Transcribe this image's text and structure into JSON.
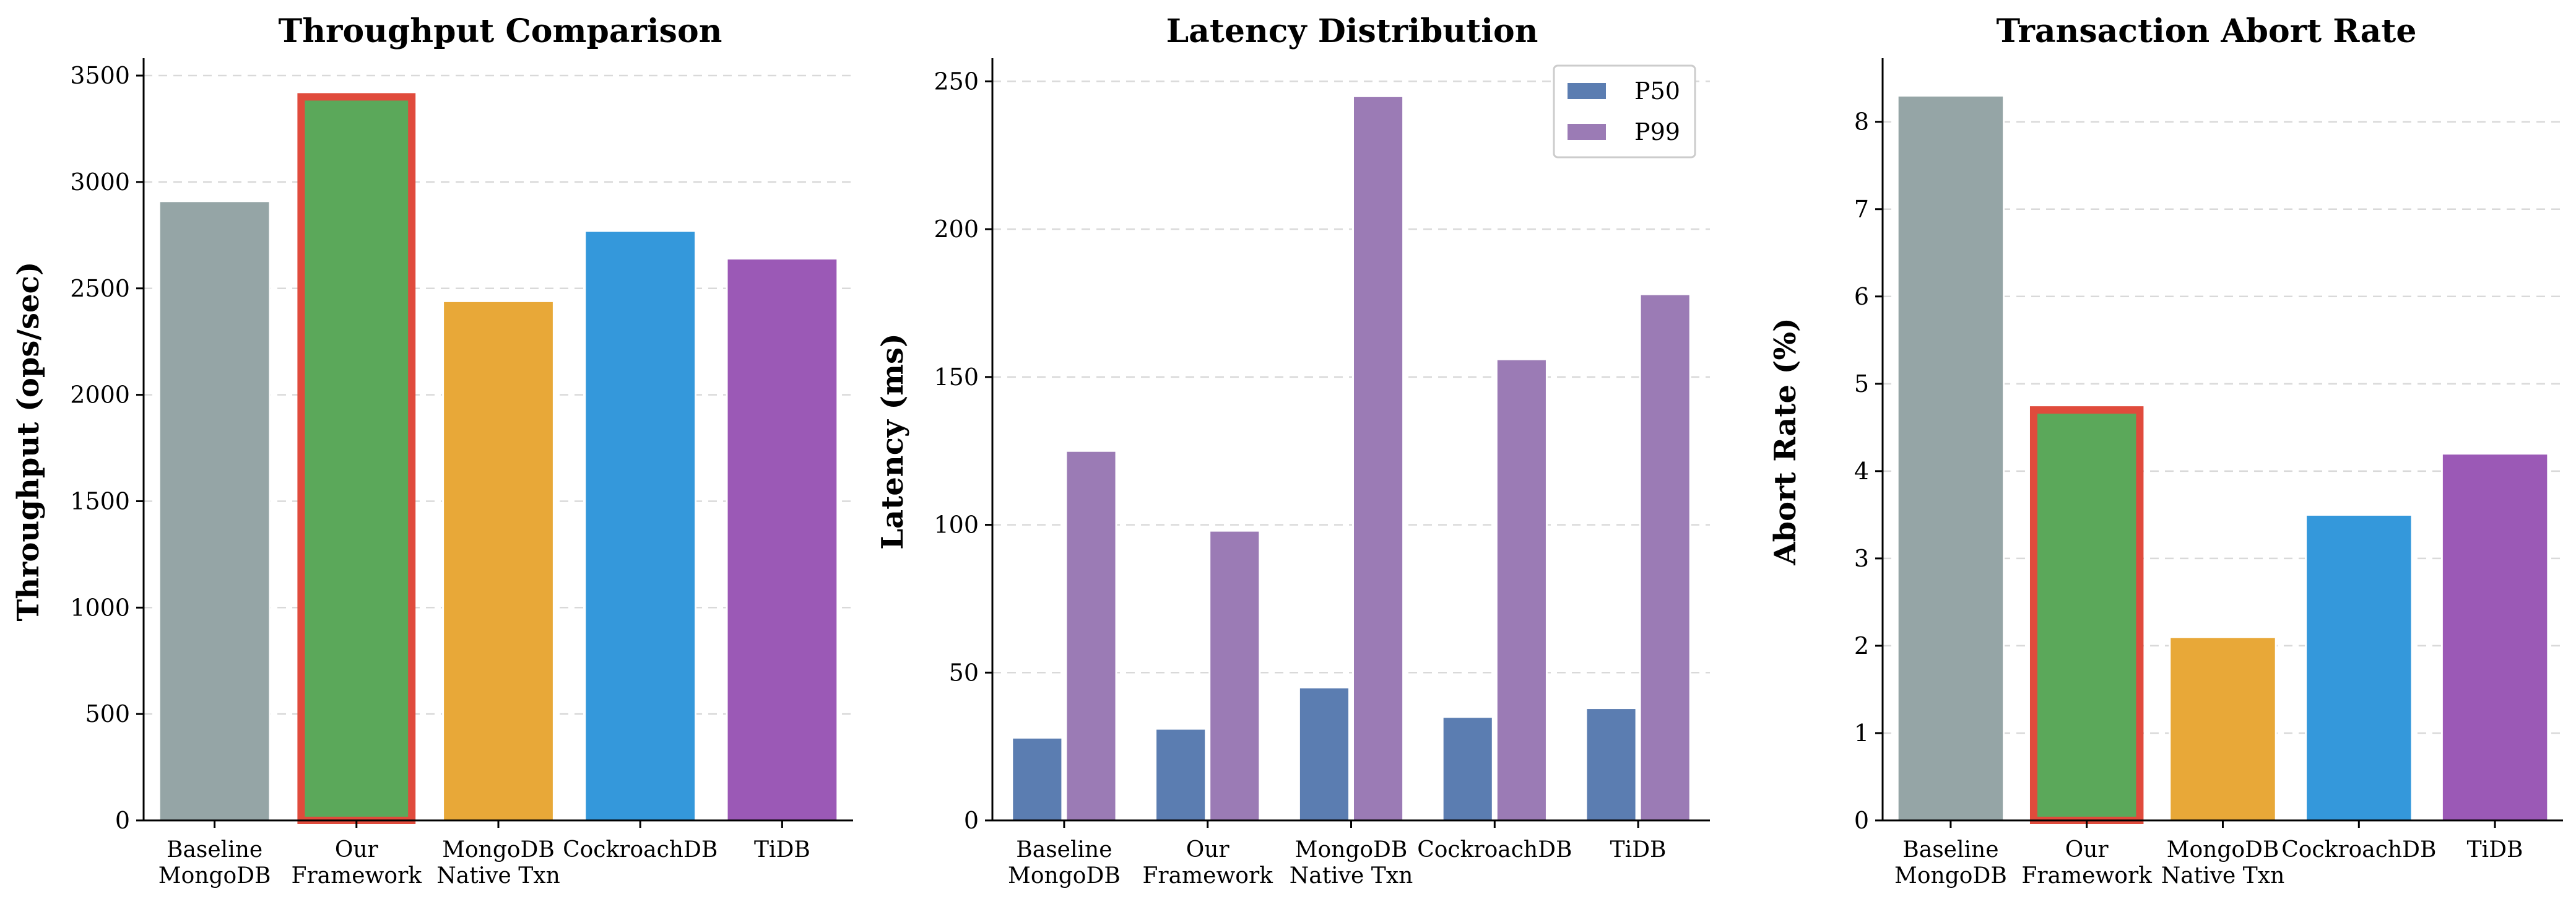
{
  "chart_data": [
    {
      "type": "bar",
      "title": "Throughput Comparison",
      "xlabel": "",
      "ylabel": "Throughput (ops/sec)",
      "ylim": [
        0,
        3570
      ],
      "yticks": [
        0,
        500,
        1000,
        1500,
        2000,
        2500,
        3000,
        3500
      ],
      "grid": true,
      "categories": [
        [
          "Baseline",
          "MongoDB"
        ],
        [
          "Our",
          "Framework"
        ],
        [
          "MongoDB",
          "Native Txn"
        ],
        [
          "CockroachDB"
        ],
        [
          "TiDB"
        ]
      ],
      "values": [
        2910,
        3400,
        2440,
        2770,
        2640
      ],
      "colors": [
        "#95a5a6",
        "#5ba85a",
        "#e8a838",
        "#3498db",
        "#9b59b6"
      ],
      "highlight_index": 1,
      "highlight_color": "#e04b3c"
    },
    {
      "type": "bar",
      "title": "Latency Distribution",
      "xlabel": "",
      "ylabel": "Latency (ms)",
      "ylim": [
        0,
        257
      ],
      "yticks": [
        0,
        50,
        100,
        150,
        200,
        250
      ],
      "grid": true,
      "categories": [
        [
          "Baseline",
          "MongoDB"
        ],
        [
          "Our",
          "Framework"
        ],
        [
          "MongoDB",
          "Native Txn"
        ],
        [
          "CockroachDB"
        ],
        [
          "TiDB"
        ]
      ],
      "series": [
        {
          "name": "P50",
          "values": [
            28,
            31,
            45,
            35,
            38
          ],
          "color": "#5b7db1"
        },
        {
          "name": "P99",
          "values": [
            125,
            98,
            245,
            156,
            178
          ],
          "color": "#9b7bb5"
        }
      ],
      "legend": "top-right"
    },
    {
      "type": "bar",
      "title": "Transaction Abort Rate",
      "xlabel": "",
      "ylabel": "Abort Rate (%)",
      "ylim": [
        0,
        8.7
      ],
      "yticks": [
        0,
        1,
        2,
        3,
        4,
        5,
        6,
        7,
        8
      ],
      "grid": true,
      "categories": [
        [
          "Baseline",
          "MongoDB"
        ],
        [
          "Our",
          "Framework"
        ],
        [
          "MongoDB",
          "Native Txn"
        ],
        [
          "CockroachDB"
        ],
        [
          "TiDB"
        ]
      ],
      "values": [
        8.3,
        4.7,
        2.1,
        3.5,
        4.2
      ],
      "colors": [
        "#95a5a6",
        "#5ba85a",
        "#e8a838",
        "#3498db",
        "#9b59b6"
      ],
      "highlight_index": 1,
      "highlight_color": "#e04b3c"
    }
  ]
}
